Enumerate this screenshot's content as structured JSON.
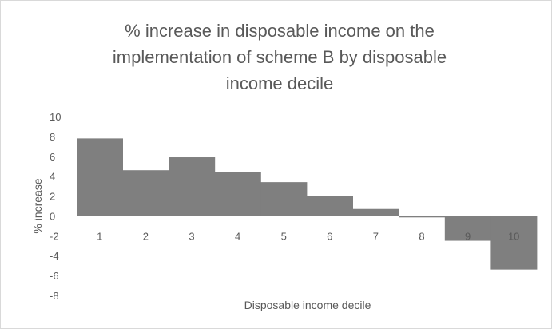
{
  "chart_data": {
    "type": "bar",
    "title": "% increase in disposable income on the implementation of scheme B by disposable income decile",
    "title_lines": [
      "% increase in disposable income on the",
      "implementation of scheme B by disposable",
      "income decile"
    ],
    "xlabel": "Disposable income decile",
    "ylabel": "% increase",
    "categories": [
      "1",
      "2",
      "3",
      "4",
      "5",
      "6",
      "7",
      "8",
      "9",
      "10"
    ],
    "values": [
      7.8,
      4.6,
      5.9,
      4.4,
      3.4,
      2.0,
      0.7,
      -0.15,
      -2.5,
      -5.4
    ],
    "ylim": [
      -8,
      10
    ],
    "yticks": [
      "10",
      "8",
      "6",
      "4",
      "2",
      "0",
      "-2",
      "-4",
      "-6",
      "-8"
    ],
    "grid": false,
    "legend": "none",
    "bar_color": "#7f7f7f",
    "bar_gap": 0
  }
}
